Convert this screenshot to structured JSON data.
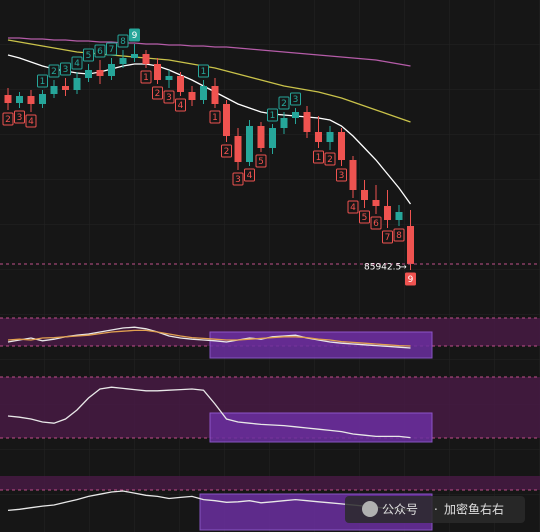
{
  "chart_data": {
    "type": "candlestick",
    "open": [
      92700,
      92380,
      92660,
      92340,
      92740,
      93060,
      92900,
      93380,
      93700,
      93460,
      93940,
      94180,
      94340,
      93940,
      93300,
      93460,
      92820,
      92500,
      93060,
      92340,
      91060,
      90020,
      91460,
      90580,
      91380,
      91780,
      92020,
      91220,
      90820,
      91220,
      90100,
      88900,
      88500,
      88260,
      87700,
      87460
    ],
    "high": [
      92980,
      92820,
      92900,
      92900,
      93300,
      93380,
      93620,
      93940,
      94100,
      94180,
      94500,
      94740,
      94500,
      94180,
      93700,
      93620,
      93060,
      93300,
      93380,
      92500,
      91380,
      91700,
      91620,
      91540,
      92020,
      92180,
      92260,
      91860,
      91460,
      91380,
      90260,
      89300,
      89100,
      88900,
      88300,
      88100
    ],
    "low": [
      92100,
      92180,
      92020,
      92180,
      92580,
      92660,
      92740,
      93220,
      93140,
      93300,
      93780,
      94020,
      93780,
      93140,
      92980,
      92660,
      92260,
      92340,
      92180,
      90820,
      89700,
      89860,
      90420,
      90340,
      91140,
      91540,
      90980,
      90580,
      90500,
      89860,
      88580,
      88180,
      87940,
      87380,
      87460,
      85700
    ],
    "close": [
      92380,
      92660,
      92340,
      92740,
      93060,
      92900,
      93380,
      93700,
      93460,
      93940,
      94180,
      94340,
      93940,
      93300,
      93460,
      92820,
      92500,
      93060,
      92340,
      91060,
      90020,
      91460,
      90580,
      91380,
      91780,
      92020,
      91220,
      90820,
      91220,
      90100,
      88900,
      88500,
      88260,
      87700,
      88020,
      85942.5
    ],
    "up_color": "#26a69a",
    "down_color": "#ef5350",
    "ylim": [
      84500,
      96500
    ],
    "moving_averages": [
      {
        "color": "#ffffff",
        "values": [
          94300,
          94180,
          94020,
          93860,
          93740,
          93660,
          93580,
          93540,
          93620,
          93740,
          93860,
          93940,
          93940,
          93860,
          93700,
          93500,
          93300,
          93060,
          92820,
          92580,
          92340,
          92180,
          92020,
          91940,
          91900,
          91860,
          91820,
          91780,
          91700,
          91460,
          91060,
          90580,
          90100,
          89540,
          88980,
          88340
        ]
      },
      {
        "color": "#c9c24a",
        "values": [
          94900,
          94820,
          94740,
          94660,
          94580,
          94500,
          94420,
          94380,
          94340,
          94300,
          94260,
          94220,
          94180,
          94140,
          94100,
          94020,
          93940,
          93860,
          93780,
          93660,
          93540,
          93420,
          93300,
          93180,
          93060,
          92980,
          92900,
          92820,
          92700,
          92580,
          92420,
          92260,
          92100,
          91940,
          91780,
          91620
        ]
      },
      {
        "color": "#b55ca8",
        "values": [
          94980,
          94980,
          94940,
          94940,
          94900,
          94900,
          94860,
          94860,
          94820,
          94820,
          94780,
          94780,
          94740,
          94740,
          94700,
          94700,
          94660,
          94660,
          94620,
          94620,
          94580,
          94540,
          94500,
          94460,
          94420,
          94380,
          94340,
          94300,
          94260,
          94220,
          94180,
          94140,
          94100,
          94020,
          93940,
          93860
        ]
      }
    ],
    "td_up": [
      null,
      null,
      null,
      1,
      2,
      3,
      4,
      5,
      6,
      7,
      8,
      9,
      null,
      null,
      null,
      null,
      null,
      1,
      null,
      null,
      null,
      null,
      null,
      1,
      2,
      3,
      null,
      null,
      null,
      null,
      null,
      null,
      null,
      null,
      null,
      null
    ],
    "td_down": [
      2,
      3,
      4,
      null,
      null,
      null,
      null,
      null,
      null,
      null,
      null,
      null,
      1,
      2,
      3,
      4,
      null,
      null,
      1,
      2,
      3,
      4,
      5,
      null,
      null,
      null,
      null,
      1,
      2,
      3,
      4,
      5,
      6,
      7,
      8,
      9
    ],
    "last_price": 85942.5,
    "indicators": [
      {
        "ylim": [
          0,
          100
        ],
        "series": [
          {
            "color": "#e8e8e8",
            "values": [
              45,
              50,
              55,
              48,
              52,
              58,
              62,
              65,
              70,
              75,
              80,
              82,
              78,
              70,
              60,
              55,
              52,
              50,
              48,
              45,
              50,
              55,
              52,
              58,
              60,
              62,
              55,
              50,
              45,
              42,
              40,
              38,
              36,
              34,
              32,
              30
            ]
          },
          {
            "color": "#e0a050",
            "values": [
              50,
              52,
              50,
              55,
              56,
              58,
              60,
              62,
              66,
              70,
              72,
              74,
              74,
              70,
              65,
              60,
              56,
              54,
              52,
              50,
              50,
              52,
              54,
              56,
              58,
              58,
              56,
              52,
              50,
              46,
              44,
              42,
              40,
              38,
              36,
              35
            ]
          }
        ]
      },
      {
        "ylim": [
          0,
          100
        ],
        "series": [
          {
            "color": "#e8e8e8",
            "values": [
              40,
              38,
              35,
              30,
              28,
              35,
              50,
              70,
              85,
              88,
              86,
              84,
              82,
              82,
              83,
              84,
              85,
              83,
              60,
              35,
              30,
              28,
              26,
              25,
              24,
              22,
              20,
              18,
              16,
              14,
              10,
              8,
              6,
              6,
              6,
              4
            ]
          }
        ]
      },
      {
        "ylim": [
          0,
          100
        ],
        "series": [
          {
            "color": "#e8e8e8",
            "values": [
              40,
              42,
              45,
              48,
              50,
              55,
              60,
              66,
              70,
              74,
              76,
              72,
              68,
              66,
              62,
              64,
              66,
              60,
              58,
              55,
              56,
              58,
              54,
              56,
              58,
              60,
              58,
              56,
              54,
              52,
              50,
              48,
              46,
              44,
              42,
              40
            ]
          }
        ]
      }
    ]
  },
  "watermark": [
    "公众号",
    "加密鱼右右"
  ]
}
